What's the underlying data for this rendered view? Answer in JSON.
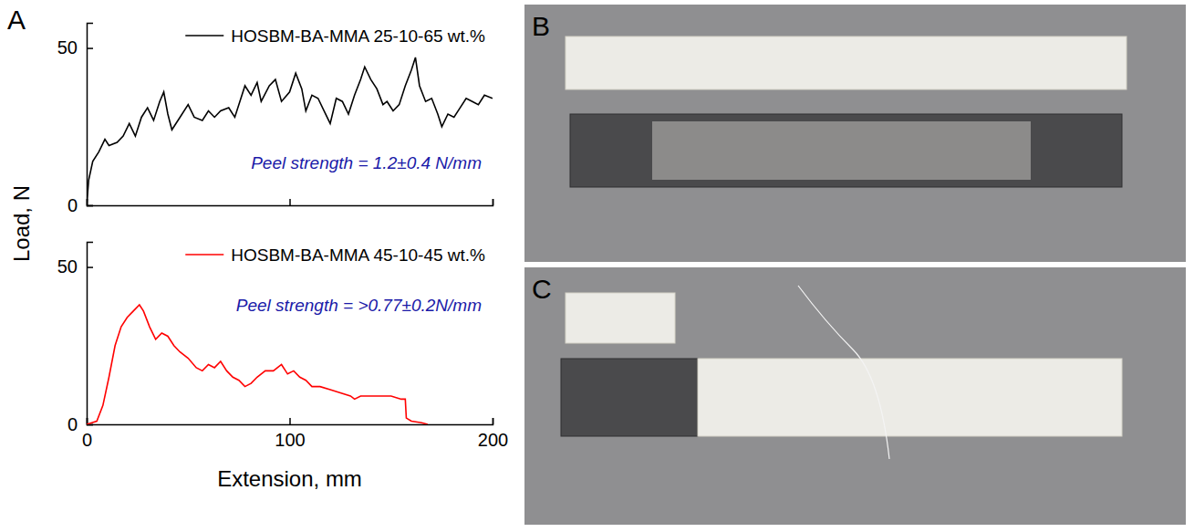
{
  "panels": [
    "A",
    "B",
    "C"
  ],
  "axis_titles": {
    "x": "Extension, mm",
    "y": "Load, N"
  },
  "chart_data": [
    {
      "type": "line",
      "xlim": [
        0,
        200
      ],
      "ylim": [
        0,
        58
      ],
      "xticks": [
        0,
        100,
        200
      ],
      "yticks": [
        0,
        50
      ],
      "tick_labels": "y",
      "legend": "upper right",
      "annotation": "Peel strength = 1.2±0.4 N/mm",
      "series": [
        {
          "name": "HOSBM-BA-MMA 25-10-65 wt.%",
          "color": "#000000",
          "x": [
            0,
            1,
            3,
            6,
            9,
            11,
            15,
            18,
            21,
            24,
            27,
            30,
            33,
            36,
            38,
            40,
            42,
            46,
            50,
            53,
            57,
            60,
            63,
            66,
            70,
            73,
            76,
            78,
            81,
            84,
            86,
            90,
            93,
            96,
            100,
            103,
            106,
            108,
            111,
            114,
            117,
            120,
            123,
            126,
            129,
            132,
            135,
            137,
            140,
            143,
            146,
            148,
            151,
            154,
            157,
            160,
            162,
            164,
            167,
            170,
            173,
            175,
            178,
            181,
            184,
            187,
            190,
            193,
            196,
            200
          ],
          "values": [
            0,
            8,
            14,
            17,
            21,
            19,
            20,
            22,
            26,
            22,
            28,
            31,
            27,
            33,
            36,
            29,
            24,
            28,
            32,
            28,
            27,
            30,
            28,
            30,
            31,
            28,
            34,
            38,
            35,
            39,
            33,
            38,
            40,
            33,
            36,
            42,
            37,
            30,
            35,
            34,
            30,
            26,
            34,
            33,
            29,
            35,
            40,
            44,
            40,
            37,
            32,
            33,
            30,
            32,
            38,
            43,
            47,
            38,
            33,
            34,
            29,
            25,
            29,
            28,
            31,
            34,
            33,
            32,
            35,
            34
          ]
        }
      ]
    },
    {
      "type": "line",
      "xlim": [
        0,
        200
      ],
      "ylim": [
        0,
        58
      ],
      "xticks": [
        0,
        100,
        200
      ],
      "yticks": [
        0,
        50
      ],
      "legend": "upper right",
      "annotation": "Peel strength = >0.77±0.2N/mm",
      "series": [
        {
          "name": "HOSBM-BA-MMA 45-10-45 wt.%",
          "color": "#ff0000",
          "x": [
            0,
            5,
            8,
            11,
            14,
            17,
            20,
            23,
            26,
            28,
            31,
            34,
            37,
            40,
            43,
            46,
            50,
            54,
            57,
            60,
            63,
            66,
            69,
            72,
            75,
            78,
            81,
            84,
            88,
            92,
            96,
            99,
            102,
            105,
            108,
            111,
            115,
            120,
            125,
            130,
            132,
            135,
            140,
            145,
            150,
            155,
            157,
            157.5,
            160,
            165,
            168
          ],
          "values": [
            0,
            1,
            6,
            15,
            25,
            31,
            34,
            36,
            38,
            36,
            31,
            27,
            29,
            28,
            25,
            23,
            21,
            18,
            17,
            19,
            18,
            20,
            17,
            15,
            14,
            12,
            13,
            15,
            17,
            17,
            19,
            16,
            17,
            15,
            14,
            12,
            12,
            11,
            10,
            9,
            8,
            9,
            9,
            9,
            9,
            8,
            8,
            2,
            1,
            0.5,
            0
          ]
        }
      ]
    }
  ]
}
